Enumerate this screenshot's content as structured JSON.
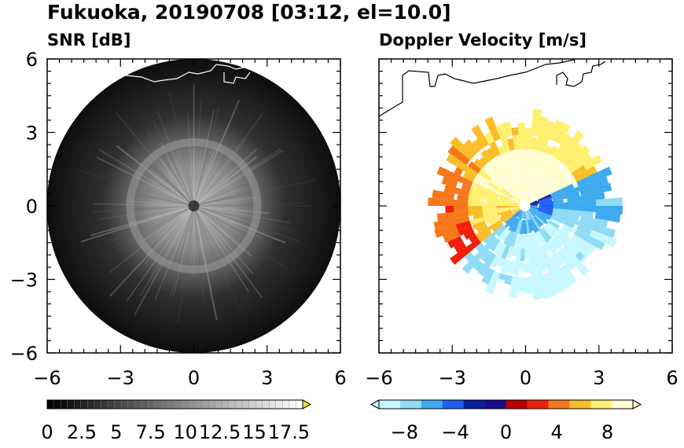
{
  "figure": {
    "title": "Fukuoka, 20190708 [03:12, el=10.0]"
  },
  "chart_data": [
    {
      "type": "heatmap",
      "title": "SNR [dB]",
      "xlim": [
        -6,
        6
      ],
      "ylim": [
        -6,
        6
      ],
      "x_ticks": [
        -6,
        -3,
        0,
        3,
        6
      ],
      "y_ticks": [
        6,
        3,
        0,
        -3,
        -6
      ],
      "x_tick_labels": [
        "−6",
        "−3",
        "0",
        "3",
        "6"
      ],
      "y_tick_labels": [
        "6",
        "3",
        "0",
        "−3",
        "−6"
      ],
      "scan_radius": 6,
      "ring_radius": 2.6,
      "colorbar": {
        "ticks": [
          0,
          2.5,
          5,
          7.5,
          10,
          12.5,
          15,
          17.5
        ],
        "tick_labels": [
          "0",
          "2.5",
          "5",
          "7.5",
          "10",
          "12.5",
          "15",
          "17.5"
        ],
        "range": [
          0,
          18.5
        ],
        "extend": "max",
        "colors": [
          "#000000",
          "#ffffff"
        ],
        "extend_color": "#f4e12a"
      }
    },
    {
      "type": "heatmap",
      "title": "Doppler Velocity [m/s]",
      "xlim": [
        -6,
        6
      ],
      "ylim": [
        -6,
        6
      ],
      "x_ticks": [
        -6,
        -3,
        0,
        3,
        6
      ],
      "y_ticks": [
        6,
        3,
        0,
        -3,
        -6
      ],
      "x_tick_labels": [
        "−6",
        "−3",
        "0",
        "3",
        "6"
      ],
      "echo_radius": 3.5,
      "colorbar": {
        "ticks": [
          -8,
          -4,
          0,
          4,
          8
        ],
        "tick_labels": [
          "−8",
          "−4",
          "0",
          "4",
          "8"
        ],
        "range": [
          -10,
          10
        ],
        "extend": "both",
        "colors": [
          "#c8f8ff",
          "#8fdcf4",
          "#3eaaf0",
          "#1f5ef0",
          "#0a1ea0",
          "#1a0a8c",
          "#b80000",
          "#f01e0a",
          "#f7781a",
          "#fbbe28",
          "#fff070",
          "#fffdd2"
        ]
      }
    }
  ]
}
